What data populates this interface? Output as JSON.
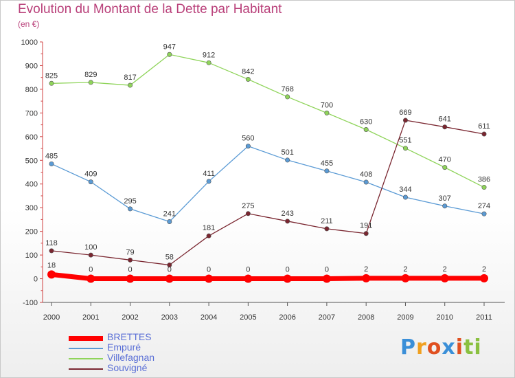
{
  "title": "Evolution du Montant de la Dette par Habitant",
  "subtitle": "(en €)",
  "logo_text": "Proxiti",
  "chart_data": {
    "type": "line",
    "title": "Evolution du Montant de la Dette par Habitant",
    "subtitle": "(en €)",
    "x": [
      "2000",
      "2001",
      "2002",
      "2003",
      "2004",
      "2005",
      "2006",
      "2007",
      "2008",
      "2009",
      "2010",
      "2011"
    ],
    "ylim": [
      -100,
      1000
    ],
    "yticks": [
      -100,
      0,
      100,
      200,
      300,
      400,
      500,
      600,
      700,
      800,
      900,
      1000
    ],
    "grid": false,
    "legend_position": "bottom-left",
    "series": [
      {
        "name": "BRETTES",
        "values": [
          18,
          0,
          0,
          0,
          0,
          0,
          0,
          0,
          2,
          2,
          2,
          2
        ],
        "color": "#ff0000",
        "labels": [
          "18",
          "0",
          "0",
          "0",
          "0",
          "0",
          "0",
          "0",
          "2",
          "2",
          "2",
          "2"
        ]
      },
      {
        "name": "Empuré",
        "values": [
          485,
          409,
          295,
          241,
          411,
          560,
          501,
          455,
          408,
          344,
          307,
          274
        ],
        "color": "#5b9bd5",
        "labels": [
          "485",
          "409",
          "295",
          "241",
          "411",
          "560",
          "501",
          "455",
          "408",
          "344",
          "307",
          "274"
        ]
      },
      {
        "name": "Villefagnan",
        "values": [
          825,
          829,
          817,
          947,
          912,
          842,
          768,
          700,
          630,
          551,
          470,
          386
        ],
        "color": "#8fd45a",
        "labels": [
          "825",
          "829",
          "817",
          "947",
          "912",
          "842",
          "768",
          "700",
          "630",
          "551",
          "470",
          "386"
        ]
      },
      {
        "name": "Souvigné",
        "values": [
          118,
          100,
          79,
          58,
          181,
          275,
          243,
          211,
          191,
          669,
          641,
          611
        ],
        "color": "#7a2630",
        "labels": [
          "118",
          "100",
          "79",
          "58",
          "181",
          "275",
          "243",
          "211",
          "191",
          "669",
          "641",
          "611"
        ]
      }
    ]
  }
}
